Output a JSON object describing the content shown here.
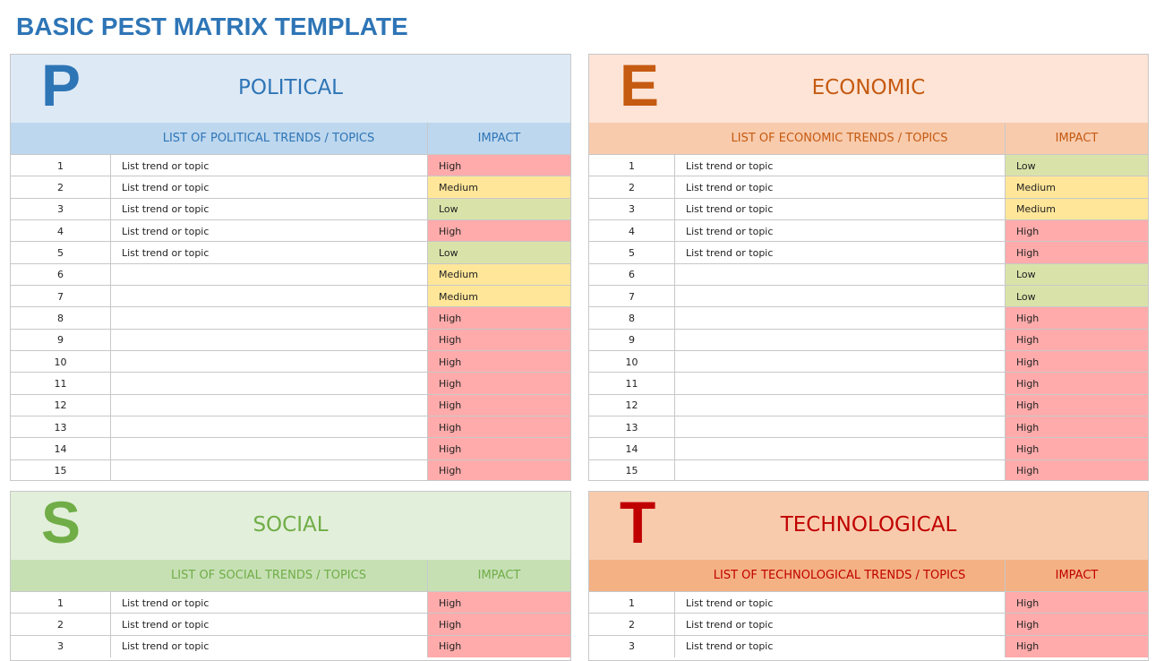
{
  "title": "BASIC PEST MATRIX TEMPLATE",
  "impact_colors": {
    "High": "#ffabab",
    "Medium": "#ffe699",
    "Low": "#d9e3a9"
  },
  "quadrants": [
    {
      "letter": "P",
      "heading": "POLITICAL",
      "list_header": "LIST OF POLITICAL TRENDS / TOPICS",
      "impact_header": "IMPACT",
      "rows": [
        {
          "number": 1,
          "topic": "List trend or topic",
          "impact": "High"
        },
        {
          "number": 2,
          "topic": "List trend or topic",
          "impact": "Medium"
        },
        {
          "number": 3,
          "topic": "List trend or topic",
          "impact": "Low"
        },
        {
          "number": 4,
          "topic": "List trend or topic",
          "impact": "High"
        },
        {
          "number": 5,
          "topic": "List trend or topic",
          "impact": "Low"
        },
        {
          "number": 6,
          "impact": "Medium"
        },
        {
          "number": 7,
          "impact": "Medium"
        },
        {
          "number": 8,
          "impact": "High"
        },
        {
          "number": 9,
          "impact": "High"
        },
        {
          "number": 10,
          "impact": "High"
        },
        {
          "number": 11,
          "impact": "High"
        },
        {
          "number": 12,
          "impact": "High"
        },
        {
          "number": 13,
          "impact": "High"
        },
        {
          "number": 14,
          "impact": "High"
        },
        {
          "number": 15,
          "impact": "High"
        }
      ]
    },
    {
      "letter": "E",
      "heading": "ECONOMIC",
      "list_header": "LIST OF ECONOMIC TRENDS / TOPICS",
      "impact_header": "IMPACT",
      "rows": [
        {
          "number": 1,
          "topic": "List trend or topic",
          "impact": "Low"
        },
        {
          "number": 2,
          "topic": "List trend or topic",
          "impact": "Medium"
        },
        {
          "number": 3,
          "topic": "List trend or topic",
          "impact": "Medium"
        },
        {
          "number": 4,
          "topic": "List trend or topic",
          "impact": "High"
        },
        {
          "number": 5,
          "topic": "List trend or topic",
          "impact": "High"
        },
        {
          "number": 6,
          "impact": "Low"
        },
        {
          "number": 7,
          "impact": "Low"
        },
        {
          "number": 8,
          "impact": "High"
        },
        {
          "number": 9,
          "impact": "High"
        },
        {
          "number": 10,
          "impact": "High"
        },
        {
          "number": 11,
          "impact": "High"
        },
        {
          "number": 12,
          "impact": "High"
        },
        {
          "number": 13,
          "impact": "High"
        },
        {
          "number": 14,
          "impact": "High"
        },
        {
          "number": 15,
          "impact": "High"
        }
      ]
    },
    {
      "letter": "S",
      "heading": "SOCIAL",
      "list_header": "LIST OF SOCIAL TRENDS / TOPICS",
      "impact_header": "IMPACT",
      "rows": [
        {
          "number": 1,
          "topic": "List trend or topic",
          "impact": "High"
        },
        {
          "number": 2,
          "topic": "List trend or topic",
          "impact": "High"
        },
        {
          "number": 3,
          "topic": "List trend or topic",
          "impact": "High"
        }
      ]
    },
    {
      "letter": "T",
      "heading": "TECHNOLOGICAL",
      "list_header": "LIST OF TECHNOLOGICAL TRENDS / TOPICS",
      "impact_header": "IMPACT",
      "rows": [
        {
          "number": 1,
          "topic": "List trend or topic",
          "impact": "High"
        },
        {
          "number": 2,
          "topic": "List trend or topic",
          "impact": "High"
        },
        {
          "number": 3,
          "topic": "List trend or topic",
          "impact": "High"
        }
      ]
    }
  ]
}
